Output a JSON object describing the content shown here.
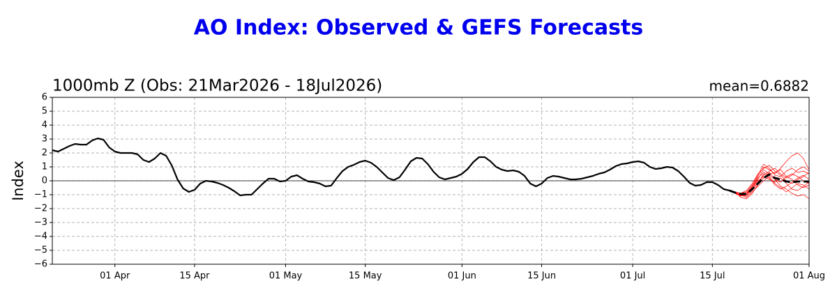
{
  "chart_data": {
    "type": "line",
    "title": "AO Index: Observed & GEFS Forecasts",
    "subtitle": "1000mb Z (Obs: 21Mar2026 - 18Jul2026)",
    "annotation": "mean=0.6882",
    "y_label": "Index",
    "xlim": [
      "03-21",
      "08-01"
    ],
    "xticks": [
      {
        "value": "04-01",
        "label": "01 Apr"
      },
      {
        "value": "04-15",
        "label": "15 Apr"
      },
      {
        "value": "05-01",
        "label": "01 May"
      },
      {
        "value": "05-15",
        "label": "15 May"
      },
      {
        "value": "06-01",
        "label": "01 Jun"
      },
      {
        "value": "06-15",
        "label": "15 Jun"
      },
      {
        "value": "07-01",
        "label": "01 Jul"
      },
      {
        "value": "07-15",
        "label": "15 Jul"
      },
      {
        "value": "08-01",
        "label": "01 Aug"
      }
    ],
    "ylim": [
      -6,
      6
    ],
    "yticks": [
      {
        "value": -6,
        "label": "−6"
      },
      {
        "value": -5,
        "label": "−5"
      },
      {
        "value": -4,
        "label": "−4"
      },
      {
        "value": -3,
        "label": "−3"
      },
      {
        "value": -2,
        "label": "−2"
      },
      {
        "value": -1,
        "label": "−1"
      },
      0,
      1,
      2,
      3,
      4,
      5,
      6
    ],
    "grid": true,
    "hlines": [
      0
    ],
    "series": [
      {
        "color": "#000000",
        "linewidth": 2.2,
        "linestyle": "solid",
        "x": [
          "03-21",
          "03-22",
          "03-23",
          "03-24",
          "03-25",
          "03-26",
          "03-27",
          "03-28",
          "03-29",
          "03-30",
          "03-31",
          "04-01",
          "04-02",
          "04-03",
          "04-04",
          "04-05",
          "04-06",
          "04-07",
          "04-08",
          "04-09",
          "04-10",
          "04-11",
          "04-12",
          "04-13",
          "04-14",
          "04-15",
          "04-16",
          "04-17",
          "04-18",
          "04-19",
          "04-20",
          "04-21",
          "04-22",
          "04-23",
          "04-24",
          "04-25",
          "04-26",
          "04-27",
          "04-28",
          "04-29",
          "04-30",
          "05-01",
          "05-02",
          "05-03",
          "05-04",
          "05-05",
          "05-06",
          "05-07",
          "05-08",
          "05-09",
          "05-10",
          "05-11",
          "05-12",
          "05-13",
          "05-14",
          "05-15",
          "05-16",
          "05-17",
          "05-18",
          "05-19",
          "05-20",
          "05-21",
          "05-22",
          "05-23",
          "05-24",
          "05-25",
          "05-26",
          "05-27",
          "05-28",
          "05-29",
          "05-30",
          "05-31",
          "06-01",
          "06-02",
          "06-03",
          "06-04",
          "06-05",
          "06-06",
          "06-07",
          "06-08",
          "06-09",
          "06-10",
          "06-11",
          "06-12",
          "06-13",
          "06-14",
          "06-15",
          "06-16",
          "06-17",
          "06-18",
          "06-19",
          "06-20",
          "06-21",
          "06-22",
          "06-23",
          "06-24",
          "06-25",
          "06-26",
          "06-27",
          "06-28",
          "06-29",
          "06-30",
          "07-01",
          "07-02",
          "07-03",
          "07-04",
          "07-05",
          "07-06",
          "07-07",
          "07-08",
          "07-09",
          "07-10",
          "07-11",
          "07-12",
          "07-13",
          "07-14",
          "07-15",
          "07-16",
          "07-17",
          "07-18"
        ],
        "values": [
          2.2,
          2.1,
          2.3,
          2.5,
          2.65,
          2.6,
          2.6,
          2.9,
          3.05,
          2.95,
          2.4,
          2.1,
          2.0,
          2.0,
          2.0,
          1.9,
          1.5,
          1.35,
          1.6,
          2.0,
          1.8,
          1.1,
          0.1,
          -0.55,
          -0.8,
          -0.65,
          -0.2,
          0.0,
          -0.05,
          -0.15,
          -0.3,
          -0.5,
          -0.75,
          -1.05,
          -1.0,
          -1.0,
          -0.6,
          -0.2,
          0.15,
          0.15,
          -0.05,
          0.0,
          0.3,
          0.4,
          0.15,
          -0.05,
          -0.1,
          -0.2,
          -0.4,
          -0.35,
          0.2,
          0.7,
          1.0,
          1.15,
          1.35,
          1.45,
          1.3,
          1.0,
          0.6,
          0.2,
          0.05,
          0.25,
          0.8,
          1.4,
          1.65,
          1.6,
          1.2,
          0.65,
          0.25,
          0.1,
          0.2,
          0.3,
          0.5,
          0.85,
          1.35,
          1.7,
          1.7,
          1.4,
          1.0,
          0.8,
          0.7,
          0.75,
          0.65,
          0.35,
          -0.2,
          -0.4,
          -0.2,
          0.2,
          0.35,
          0.3,
          0.2,
          0.1,
          0.1,
          0.15,
          0.25,
          0.35,
          0.5,
          0.6,
          0.8,
          1.05,
          1.2,
          1.25,
          1.35,
          1.4,
          1.3,
          1.0,
          0.85,
          0.9,
          1.0,
          0.95,
          0.7,
          0.3,
          -0.15,
          -0.35,
          -0.3,
          -0.1,
          -0.1,
          -0.3,
          -0.6,
          -0.7
        ]
      },
      {
        "color": "#000000",
        "linewidth": 3,
        "linestyle": "dashed",
        "x": [
          "07-18",
          "07-19",
          "07-20",
          "07-21",
          "07-22",
          "07-23",
          "07-24",
          "07-25",
          "07-26",
          "07-27",
          "07-28",
          "07-29",
          "07-30",
          "07-31",
          "08-01"
        ],
        "values": [
          -0.7,
          -0.85,
          -0.95,
          -0.95,
          -0.6,
          -0.2,
          0.2,
          0.45,
          0.2,
          0.1,
          -0.05,
          -0.1,
          -0.05,
          -0.05,
          -0.05
        ]
      },
      {
        "color": "#ff0000",
        "linewidth": 0.7,
        "linestyle": "solid",
        "x": [
          "07-18",
          "07-19",
          "07-20",
          "07-21",
          "07-22",
          "07-23",
          "07-24",
          "07-25",
          "07-26",
          "07-27",
          "07-28",
          "07-29",
          "07-30",
          "07-31",
          "08-01"
        ],
        "values": [
          -0.7,
          -0.9,
          -1.1,
          -1.0,
          -0.4,
          0.3,
          1.0,
          0.8,
          0.5,
          0.9,
          1.4,
          1.8,
          2.0,
          1.6,
          0.8
        ]
      },
      {
        "color": "#ff0000",
        "linewidth": 0.7,
        "linestyle": "solid",
        "x": [
          "07-18",
          "07-19",
          "07-20",
          "07-21",
          "07-22",
          "07-23",
          "07-24",
          "07-25",
          "07-26",
          "07-27",
          "07-28",
          "07-29",
          "07-30",
          "07-31",
          "08-01"
        ],
        "values": [
          -0.7,
          -0.8,
          -1.2,
          -1.3,
          -0.9,
          -0.3,
          0.2,
          0.6,
          0.1,
          -0.4,
          -0.6,
          -0.9,
          -1.1,
          -1.0,
          -1.3
        ]
      },
      {
        "color": "#ff0000",
        "linewidth": 0.7,
        "linestyle": "solid",
        "x": [
          "07-18",
          "07-19",
          "07-20",
          "07-21",
          "07-22",
          "07-23",
          "07-24",
          "07-25",
          "07-26",
          "07-27",
          "07-28",
          "07-29",
          "07-30",
          "07-31",
          "08-01"
        ],
        "values": [
          -0.7,
          -0.85,
          -0.9,
          -0.8,
          -0.3,
          0.4,
          1.2,
          0.9,
          0.4,
          0.3,
          0.7,
          0.9,
          0.6,
          0.7,
          0.5
        ]
      },
      {
        "color": "#ff0000",
        "linewidth": 0.7,
        "linestyle": "solid",
        "x": [
          "07-18",
          "07-19",
          "07-20",
          "07-21",
          "07-22",
          "07-23",
          "07-24",
          "07-25",
          "07-26",
          "07-27",
          "07-28",
          "07-29",
          "07-30",
          "07-31",
          "08-01"
        ],
        "values": [
          -0.7,
          -0.9,
          -1.0,
          -1.1,
          -0.7,
          -0.2,
          0.5,
          0.2,
          -0.3,
          -0.6,
          -0.4,
          -0.1,
          0.2,
          0.4,
          0.1
        ]
      },
      {
        "color": "#ff0000",
        "linewidth": 0.7,
        "linestyle": "solid",
        "x": [
          "07-18",
          "07-19",
          "07-20",
          "07-21",
          "07-22",
          "07-23",
          "07-24",
          "07-25",
          "07-26",
          "07-27",
          "07-28",
          "07-29",
          "07-30",
          "07-31",
          "08-01"
        ],
        "values": [
          -0.7,
          -0.8,
          -0.9,
          -0.7,
          -0.2,
          0.5,
          0.9,
          1.1,
          0.7,
          0.4,
          0.0,
          -0.2,
          0.1,
          0.3,
          0.6
        ]
      },
      {
        "color": "#ff0000",
        "linewidth": 0.7,
        "linestyle": "solid",
        "x": [
          "07-18",
          "07-19",
          "07-20",
          "07-21",
          "07-22",
          "07-23",
          "07-24",
          "07-25",
          "07-26",
          "07-27",
          "07-28",
          "07-29",
          "07-30",
          "07-31",
          "08-01"
        ],
        "values": [
          -0.7,
          -0.9,
          -1.0,
          -1.2,
          -0.8,
          -0.4,
          0.0,
          0.3,
          -0.2,
          -0.5,
          -0.8,
          -0.5,
          -0.2,
          -0.3,
          -0.6
        ]
      },
      {
        "color": "#ff0000",
        "linewidth": 0.7,
        "linestyle": "solid",
        "x": [
          "07-18",
          "07-19",
          "07-20",
          "07-21",
          "07-22",
          "07-23",
          "07-24",
          "07-25",
          "07-26",
          "07-27",
          "07-28",
          "07-29",
          "07-30",
          "07-31",
          "08-01"
        ],
        "values": [
          -0.7,
          -0.85,
          -1.05,
          -0.9,
          -0.5,
          0.1,
          0.8,
          0.5,
          0.6,
          0.8,
          0.3,
          0.1,
          -0.3,
          -0.5,
          -0.3
        ]
      },
      {
        "color": "#ff0000",
        "linewidth": 0.7,
        "linestyle": "solid",
        "x": [
          "07-18",
          "07-19",
          "07-20",
          "07-21",
          "07-22",
          "07-23",
          "07-24",
          "07-25",
          "07-26",
          "07-27",
          "07-28",
          "07-29",
          "07-30",
          "07-31",
          "08-01"
        ],
        "values": [
          -0.7,
          -0.9,
          -1.1,
          -1.0,
          -0.6,
          -0.1,
          0.4,
          0.7,
          0.9,
          0.5,
          0.2,
          0.4,
          0.8,
          1.0,
          0.7
        ]
      },
      {
        "color": "#ff0000",
        "linewidth": 0.7,
        "linestyle": "solid",
        "x": [
          "07-18",
          "07-19",
          "07-20",
          "07-21",
          "07-22",
          "07-23",
          "07-24",
          "07-25",
          "07-26",
          "07-27",
          "07-28",
          "07-29",
          "07-30",
          "07-31",
          "08-01"
        ],
        "values": [
          -0.7,
          -0.8,
          -0.95,
          -1.0,
          -0.5,
          0.0,
          0.3,
          0.1,
          -0.1,
          0.2,
          -0.2,
          -0.6,
          -0.7,
          -0.4,
          -0.1
        ]
      },
      {
        "color": "#ff0000",
        "linewidth": 0.7,
        "linestyle": "solid",
        "x": [
          "07-18",
          "07-19",
          "07-20",
          "07-21",
          "07-22",
          "07-23",
          "07-24",
          "07-25",
          "07-26",
          "07-27",
          "07-28",
          "07-29",
          "07-30",
          "07-31",
          "08-01"
        ],
        "values": [
          -0.7,
          -0.9,
          -1.0,
          -0.9,
          -0.4,
          0.2,
          0.6,
          0.4,
          0.1,
          -0.1,
          0.3,
          0.5,
          0.3,
          0.0,
          -0.2
        ]
      }
    ]
  }
}
